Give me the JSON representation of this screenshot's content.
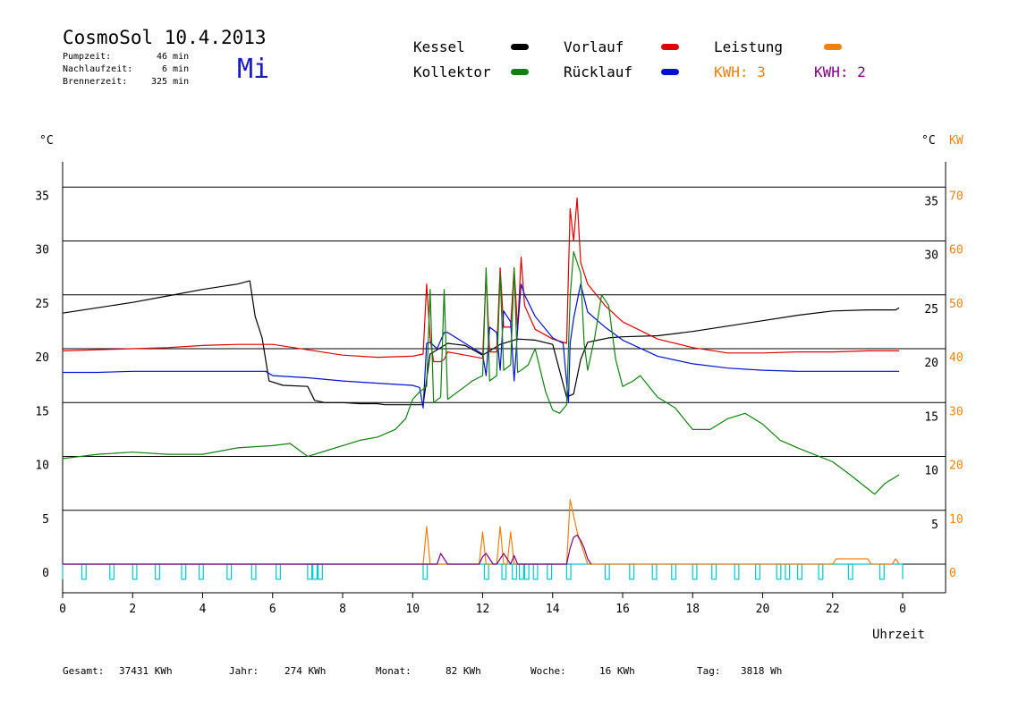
{
  "header": {
    "title": "CosmoSol 10.4.2013",
    "day": "Mi",
    "stats": [
      {
        "label": "Pumpzeit:",
        "value": "46 min"
      },
      {
        "label": "Nachlaufzeit:",
        "value": "6 min"
      },
      {
        "label": "Brennerzeit:",
        "value": "325 min"
      }
    ]
  },
  "legend": {
    "items": [
      {
        "label": "Kessel",
        "color": "#000000"
      },
      {
        "label": "Vorlauf",
        "color": "#e00000"
      },
      {
        "label": "Leistung",
        "color": "#f08010"
      },
      {
        "label": "Kollektor",
        "color": "#108010"
      },
      {
        "label": "Rücklauf",
        "color": "#0010d0"
      }
    ],
    "kwh_orange": "KWH: 3",
    "kwh_purple": "KWH: 2",
    "kwh_orange_color": "#f08010",
    "kwh_purple_color": "#800080"
  },
  "footer": {
    "gesamt_label": "Gesamt:",
    "gesamt_value": "37431 KWh",
    "jahr_label": "Jahr:",
    "jahr_value": "274 KWh",
    "monat_label": "Monat:",
    "monat_value": "82 KWh",
    "woche_label": "Woche:",
    "woche_value": "16 KWh",
    "tag_label": "Tag:",
    "tag_value": "3818 Wh"
  },
  "chart_data": {
    "type": "line",
    "xlabel": "Uhrzeit",
    "ylabel_left": "°C",
    "ylabel_right": "°C",
    "ylabel_right2": "KW",
    "x_ticks": [
      "0",
      "2",
      "4",
      "6",
      "8",
      "10",
      "12",
      "14",
      "16",
      "18",
      "20",
      "22",
      "0"
    ],
    "y_ticks_left": [
      "0",
      "5",
      "10",
      "15",
      "20",
      "25",
      "30",
      "35"
    ],
    "y_ticks_right": [
      "5",
      "10",
      "15",
      "20",
      "25",
      "30",
      "35"
    ],
    "y_ticks_kw": [
      "0",
      "10",
      "20",
      "30",
      "40",
      "50",
      "60",
      "70"
    ],
    "xlim": [
      0,
      24
    ],
    "ylim": [
      -2.5,
      37
    ],
    "gridlines_y": [
      5,
      10,
      15,
      20,
      25,
      30,
      35
    ],
    "series": [
      {
        "name": "Kessel",
        "color": "#000000",
        "x": [
          0,
          1,
          2,
          3,
          4,
          5,
          5.35,
          5.5,
          5.7,
          5.9,
          6.3,
          7.0,
          7.2,
          7.5,
          7.8,
          8,
          8.5,
          9,
          9.2,
          9.5,
          10,
          10.3,
          10.5,
          11,
          11.5,
          12,
          12.5,
          13,
          13.5,
          14,
          14.4,
          14.6,
          14.8,
          15,
          15.3,
          15.6,
          16,
          17,
          18,
          19,
          20,
          21,
          22,
          23,
          23.8,
          23.9
        ],
        "y": [
          23.3,
          23.8,
          24.3,
          24.9,
          25.5,
          26.0,
          26.3,
          23,
          21,
          17,
          16.6,
          16.5,
          15.2,
          15,
          15,
          15,
          14.9,
          14.9,
          14.8,
          14.8,
          14.8,
          14.8,
          19.5,
          20.5,
          20.3,
          19.4,
          20.4,
          20.9,
          20.8,
          20.4,
          15.5,
          15.8,
          19,
          20.6,
          20.8,
          21,
          21.1,
          21.2,
          21.6,
          22.1,
          22.6,
          23.1,
          23.5,
          23.6,
          23.6,
          23.8
        ]
      },
      {
        "name": "Vorlauf",
        "color": "#e00000",
        "x": [
          0,
          1,
          2,
          3,
          4,
          5,
          6,
          7,
          8,
          9,
          10,
          10.3,
          10.4,
          10.5,
          10.6,
          10.8,
          10.9,
          11,
          11.5,
          12,
          12.1,
          12.2,
          12.4,
          12.5,
          12.6,
          12.8,
          12.9,
          13,
          13.1,
          13.2,
          13.5,
          14,
          14.4,
          14.5,
          14.6,
          14.7,
          14.8,
          14.9,
          15,
          15.5,
          16,
          17,
          18,
          19,
          20,
          21,
          22,
          23,
          23.9
        ],
        "y": [
          19.8,
          19.9,
          20.0,
          20.1,
          20.3,
          20.4,
          20.4,
          19.9,
          19.4,
          19.2,
          19.3,
          19.5,
          26.0,
          21.0,
          18.8,
          18.8,
          19,
          19.7,
          19.4,
          19.1,
          27.0,
          19.7,
          19.7,
          27.5,
          22.0,
          22.0,
          27.5,
          21.8,
          28.5,
          24.0,
          21.8,
          20.9,
          20.5,
          33,
          30,
          34,
          28,
          27,
          26,
          24,
          22.5,
          20.9,
          20.1,
          19.6,
          19.6,
          19.7,
          19.7,
          19.8,
          19.8
        ]
      },
      {
        "name": "Rücklauf",
        "color": "#0010d0",
        "x": [
          0,
          1,
          2,
          3,
          4,
          5,
          5.8,
          6,
          7,
          8,
          9,
          10,
          10.2,
          10.3,
          10.4,
          10.5,
          10.7,
          10.9,
          11,
          11.5,
          12,
          12.1,
          12.2,
          12.4,
          12.5,
          12.6,
          12.8,
          12.9,
          13,
          13.1,
          13.2,
          13.5,
          14,
          14.3,
          14.45,
          14.5,
          14.6,
          14.8,
          15,
          15.5,
          16,
          17,
          18,
          19,
          20,
          21,
          22,
          23,
          23.9
        ],
        "y": [
          17.8,
          17.8,
          17.9,
          17.9,
          17.9,
          17.9,
          17.9,
          17.5,
          17.3,
          17.0,
          16.8,
          16.6,
          16.4,
          14.5,
          20.5,
          20.6,
          20.0,
          21.5,
          21.5,
          20.5,
          19.5,
          17.5,
          22.0,
          21.5,
          18,
          23.5,
          22.5,
          17,
          21.8,
          26.0,
          25.0,
          23,
          21.0,
          20.5,
          15,
          20.5,
          22.8,
          26.0,
          23.4,
          22.0,
          20.8,
          19.3,
          18.6,
          18.2,
          18.0,
          17.9,
          17.9,
          17.9,
          17.9
        ]
      },
      {
        "name": "Kollektor",
        "color": "#108010",
        "x": [
          0,
          0.5,
          1,
          2,
          3,
          4,
          5,
          6,
          6.5,
          7,
          7.5,
          8,
          8.5,
          9,
          9.5,
          9.8,
          10,
          10.2,
          10.4,
          10.5,
          10.6,
          10.8,
          10.9,
          11,
          11.5,
          11.7,
          12,
          12.1,
          12.2,
          12.4,
          12.5,
          12.6,
          12.8,
          12.9,
          13,
          13.1,
          13.3,
          13.5,
          13.8,
          14,
          14.2,
          14.4,
          14.5,
          14.6,
          14.8,
          14.9,
          15,
          15.2,
          15.4,
          15.6,
          15.8,
          16,
          16.3,
          16.5,
          17,
          17.5,
          18,
          18.5,
          19,
          19.5,
          20,
          20.5,
          21,
          22,
          22.5,
          23,
          23.2,
          23.5,
          23.9
        ],
        "y": [
          9.8,
          10.0,
          10.2,
          10.4,
          10.2,
          10.2,
          10.8,
          11.0,
          11.2,
          10.0,
          10.5,
          11.0,
          11.5,
          11.8,
          12.5,
          13.5,
          15.3,
          16.0,
          16.5,
          25.5,
          15.0,
          15.5,
          25.5,
          15.3,
          16.5,
          17,
          17.5,
          27.5,
          17.0,
          17.5,
          27.0,
          18.0,
          18.5,
          27.5,
          17.8,
          18.0,
          18.5,
          20.0,
          16.0,
          14.3,
          14.0,
          14.8,
          24.8,
          29.0,
          27.0,
          20.5,
          18.0,
          21.0,
          25.0,
          24.0,
          19.0,
          16.5,
          17.0,
          17.5,
          15.5,
          14.5,
          12.5,
          12.5,
          13.5,
          14.0,
          13.0,
          11.5,
          10.8,
          9.5,
          8.3,
          7.0,
          6.5,
          7.5,
          8.3
        ]
      },
      {
        "name": "Leistung",
        "color": "#f08010",
        "x": [
          0,
          10.3,
          10.4,
          10.5,
          11.9,
          12.0,
          12.1,
          12.4,
          12.5,
          12.6,
          12.7,
          12.8,
          12.9,
          13.0,
          14.4,
          14.5,
          14.7,
          14.9,
          15.0,
          22.0,
          22.1,
          22.3,
          23.0,
          23.1,
          23.7,
          23.8,
          23.9
        ],
        "y": [
          0,
          0,
          3.5,
          0,
          0,
          3,
          0,
          0,
          3.5,
          0,
          0,
          3,
          0,
          0,
          0,
          6,
          3,
          1,
          0,
          0,
          0.5,
          0.5,
          0.5,
          0,
          0,
          0.5,
          0
        ]
      },
      {
        "name": "KWH purple",
        "color": "#800080",
        "x": [
          0,
          10.7,
          10.8,
          10.9,
          11.0,
          11.9,
          12.0,
          12.1,
          12.2,
          12.3,
          12.4,
          12.6,
          12.7,
          12.8,
          12.9,
          13.0,
          14.4,
          14.5,
          14.6,
          14.7,
          14.8,
          14.9,
          15.0,
          15.1
        ],
        "y": [
          0,
          0,
          1,
          0.5,
          0,
          0,
          0.7,
          1,
          0.5,
          0,
          0,
          1,
          0.5,
          0,
          0.8,
          0,
          0,
          1.5,
          2.5,
          2.7,
          2.2,
          1.5,
          0.5,
          0
        ]
      }
    ],
    "pump_pulses": {
      "name": "Pumpe",
      "color": "#00c8c8",
      "x_on": [
        0.55,
        1.35,
        2.0,
        2.65,
        3.4,
        3.9,
        4.7,
        5.4,
        6.1,
        7.0,
        7.15,
        7.3,
        10.3,
        12.05,
        12.55,
        12.85,
        13.05,
        13.2,
        13.45,
        13.85,
        14.4,
        15.5,
        16.2,
        16.85,
        17.4,
        18.0,
        18.55,
        19.2,
        19.8,
        20.4,
        20.65,
        21.0,
        21.6,
        22.45,
        23.35
      ],
      "width_h": 0.12
    }
  }
}
